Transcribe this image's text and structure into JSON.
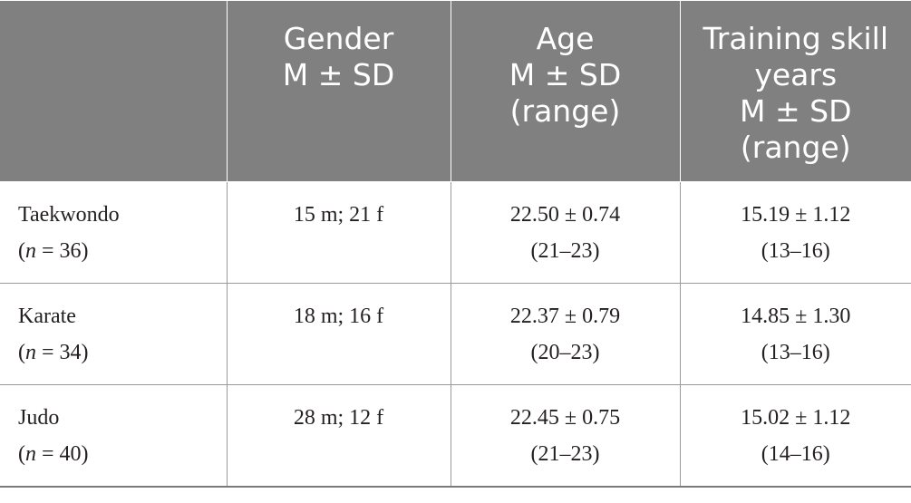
{
  "table": {
    "headers": [
      {
        "lines": []
      },
      {
        "lines": [
          "Gender",
          "M ± SD"
        ]
      },
      {
        "lines": [
          "Age",
          "M ± SD",
          "(range)"
        ]
      },
      {
        "lines": [
          "Training skill",
          "years",
          "M ± SD",
          "(range)"
        ]
      }
    ],
    "rows": [
      {
        "group": "Taekwondo",
        "n_prefix": "(",
        "n_var": "n",
        "n_suffix": " = 36)",
        "gender": "15 m; 21 f",
        "age": "22.50 ± 0.74",
        "age_range": "(21–23)",
        "training": "15.19 ± 1.12",
        "training_range": "(13–16)"
      },
      {
        "group": "Karate",
        "n_prefix": "(",
        "n_var": "n",
        "n_suffix": " = 34)",
        "gender": "18 m; 16 f",
        "age": "22.37 ± 0.79",
        "age_range": "(20–23)",
        "training": "14.85 ± 1.30",
        "training_range": "(13–16)"
      },
      {
        "group": "Judo",
        "n_prefix": "(",
        "n_var": "n",
        "n_suffix": " = 40)",
        "gender": "28 m; 12 f",
        "age": "22.45 ± 0.75",
        "age_range": "(21–23)",
        "training": "15.02 ± 1.12",
        "training_range": "(14–16)"
      }
    ]
  }
}
